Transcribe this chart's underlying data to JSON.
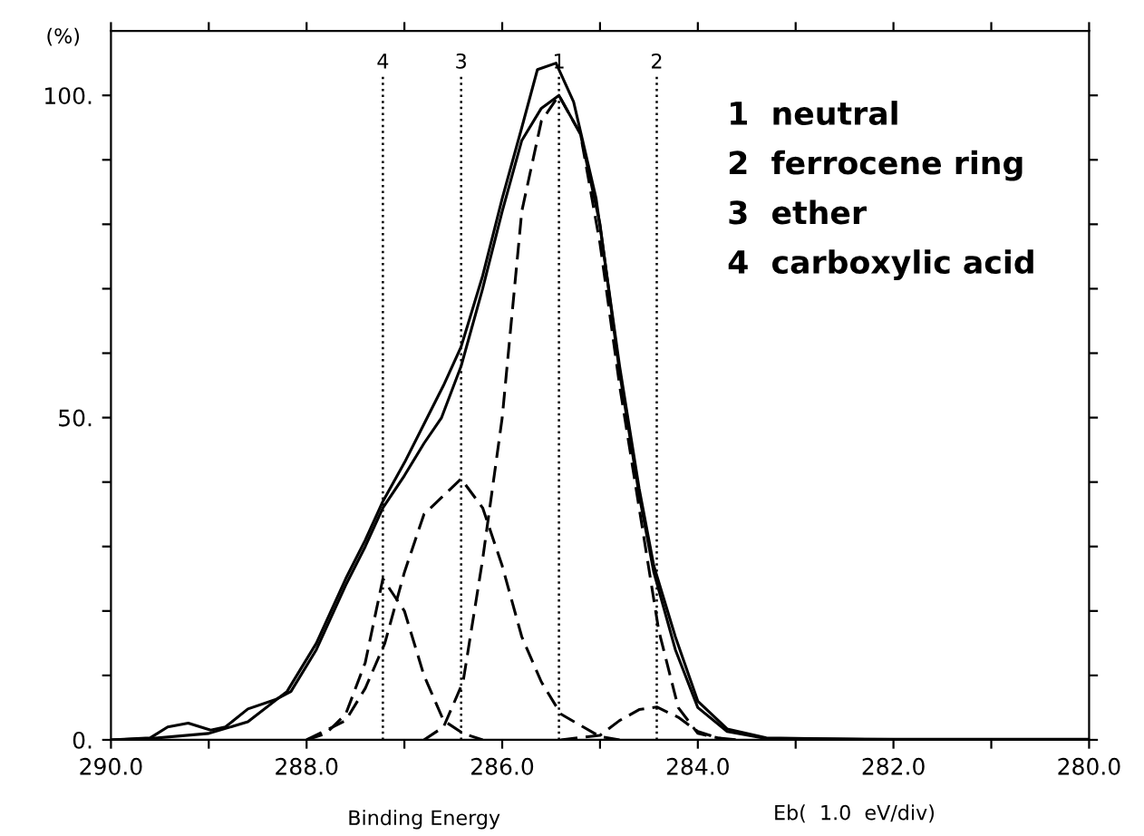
{
  "chart_data": {
    "type": "line",
    "xlabel": "Binding Energy",
    "ylabel": "(%)",
    "xlim": [
      290,
      280
    ],
    "ylim": [
      0,
      110
    ],
    "xticks": [
      {
        "value": 290,
        "label": "290.0"
      },
      {
        "value": 289,
        "label": null
      },
      {
        "value": 288,
        "label": "288.0"
      },
      {
        "value": 287,
        "label": null
      },
      {
        "value": 286,
        "label": "286.0"
      },
      {
        "value": 285,
        "label": null
      },
      {
        "value": 284,
        "label": "284.0"
      },
      {
        "value": 283,
        "label": null
      },
      {
        "value": 282,
        "label": "282.0"
      },
      {
        "value": 281,
        "label": null
      },
      {
        "value": 280,
        "label": "280.0"
      }
    ],
    "yticks": [
      {
        "value": 0,
        "label": "0."
      },
      {
        "value": 10,
        "label": null
      },
      {
        "value": 20,
        "label": null
      },
      {
        "value": 30,
        "label": null
      },
      {
        "value": 40,
        "label": null
      },
      {
        "value": 50,
        "label": "50."
      },
      {
        "value": 60,
        "label": null
      },
      {
        "value": 70,
        "label": null
      },
      {
        "value": 80,
        "label": null
      },
      {
        "value": 90,
        "label": null
      },
      {
        "value": 100,
        "label": "100."
      }
    ],
    "grid": false,
    "legend": false,
    "marker": "none",
    "series": [
      {
        "color": "#000000",
        "line_style": "solid",
        "x": [
          290,
          289.6,
          289.42,
          289.21,
          288.98,
          288.83,
          288.6,
          288.31,
          288.16,
          287.9,
          287.6,
          287.4,
          287.22,
          287.0,
          286.8,
          286.62,
          286.42,
          286.2,
          286.0,
          285.8,
          285.6,
          285.42,
          285.2,
          285.0,
          284.8,
          284.6,
          284.45,
          284.23,
          284.0,
          283.7,
          283.3,
          282,
          280
        ],
        "values": [
          0,
          0.3,
          2,
          2.6,
          1.5,
          2,
          4.8,
          6.3,
          7.5,
          14,
          24,
          30,
          36,
          41,
          46,
          50,
          58,
          70,
          82,
          93,
          98,
          100,
          94,
          80,
          57,
          38,
          26,
          14,
          5,
          1.3,
          0.2,
          0.1,
          0.1
        ]
      },
      {
        "color": "#000000",
        "line_style": "solid",
        "x": [
          290,
          289.6,
          289.0,
          288.6,
          288.2,
          287.9,
          287.6,
          287.4,
          287.22,
          287.0,
          286.8,
          286.6,
          286.42,
          286.2,
          286.0,
          285.8,
          285.64,
          285.45,
          285.27,
          285.04,
          284.8,
          284.6,
          284.45,
          284.23,
          284.0,
          283.7,
          283.3,
          282.0,
          280
        ],
        "values": [
          0,
          0.2,
          1,
          2.8,
          7.5,
          15,
          25,
          31,
          37,
          43,
          49,
          55,
          61,
          72,
          84,
          95,
          104,
          105,
          99,
          84,
          58,
          39,
          27,
          16,
          6,
          1.7,
          0.3,
          0,
          0
        ]
      },
      {
        "color": "#000000",
        "line_style": "dashed",
        "x": [
          286.8,
          286.6,
          286.4,
          286.2,
          286.0,
          285.8,
          285.6,
          285.42,
          285.2,
          285.0,
          284.8,
          284.6,
          284.4,
          284.2,
          284.0,
          283.7
        ],
        "values": [
          0,
          2,
          9,
          28,
          50,
          82,
          96,
          100,
          94,
          77,
          55,
          36,
          17,
          5,
          1,
          0
        ]
      },
      {
        "color": "#000000",
        "line_style": "dashed",
        "x": [
          285.4,
          285.0,
          284.8,
          284.6,
          284.42,
          284.2,
          284.0,
          283.8,
          283.6
        ],
        "values": [
          0,
          0.7,
          3,
          4.7,
          5.1,
          3.5,
          1.3,
          0.3,
          0
        ]
      },
      {
        "color": "#000000",
        "line_style": "dashed",
        "x": [
          288.0,
          287.6,
          287.4,
          287.2,
          287.0,
          286.8,
          286.42,
          286.2,
          286.0,
          285.8,
          285.6,
          285.4,
          285.0,
          284.8
        ],
        "values": [
          0,
          3,
          8,
          15,
          26,
          35,
          40.5,
          36,
          27,
          16,
          9,
          4,
          0.5,
          0
        ]
      },
      {
        "color": "#000000",
        "line_style": "dashed",
        "x": [
          288.0,
          287.8,
          287.6,
          287.4,
          287.22,
          287.0,
          286.8,
          286.6,
          286.4,
          286.2
        ],
        "values": [
          0,
          1,
          4,
          12,
          25,
          20,
          10,
          3,
          1,
          0
        ]
      }
    ],
    "ref_lines": [
      {
        "axis": "x",
        "value": 287.22,
        "color": "#000000",
        "line_style": "dotted"
      },
      {
        "axis": "x",
        "value": 286.42,
        "color": "#000000",
        "line_style": "dotted"
      },
      {
        "axis": "x",
        "value": 285.42,
        "color": "#000000",
        "line_style": "dotted"
      },
      {
        "axis": "x",
        "value": 284.42,
        "color": "#000000",
        "line_style": "dotted"
      }
    ],
    "annotations": [
      "1  neutral",
      "2  ferrocene ring",
      "3  ether",
      "4  carboxylic acid",
      "Eb(  1.0  eV/div)",
      "4",
      "3",
      "1",
      "2"
    ]
  }
}
